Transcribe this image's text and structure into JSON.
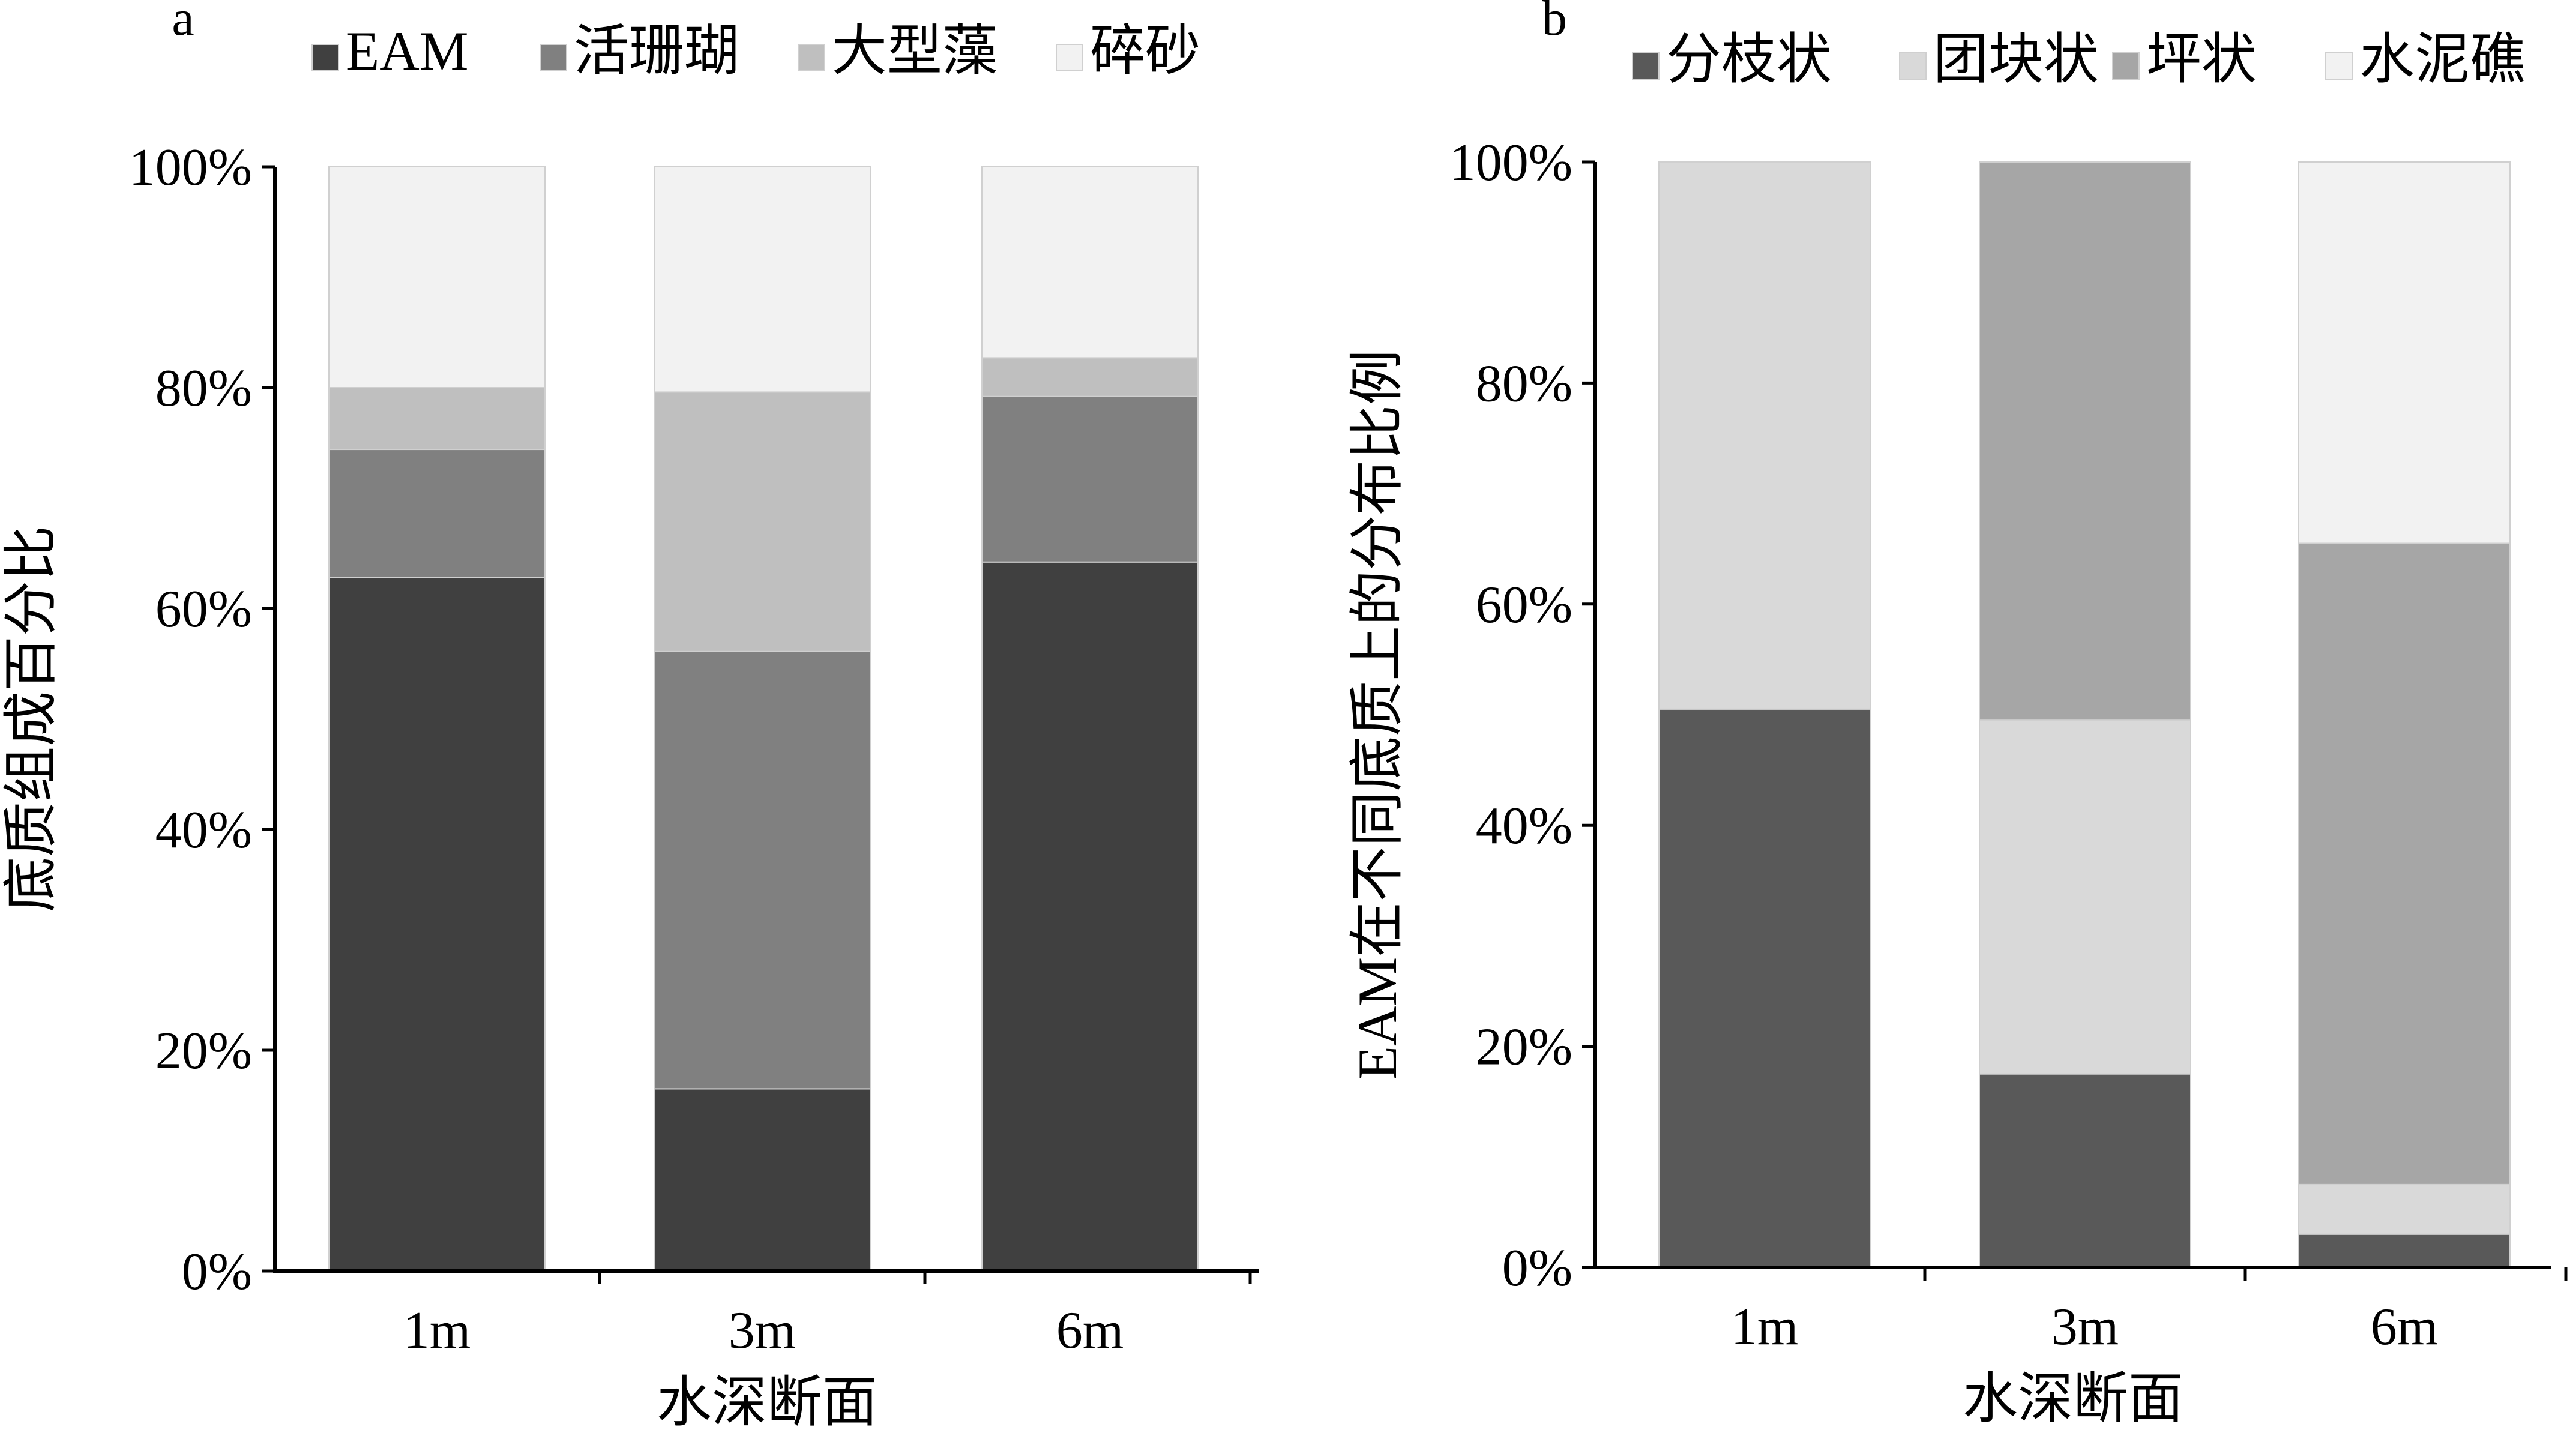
{
  "chart_data": [
    {
      "panel_label": "a",
      "type": "bar",
      "stacked": true,
      "percent": true,
      "categories": [
        "1m",
        "3m",
        "6m"
      ],
      "series": [
        {
          "name": "EAM",
          "color": "#404040",
          "values": [
            62.8,
            16.5,
            64.2
          ]
        },
        {
          "name": "活珊瑚",
          "color": "#808080",
          "values": [
            11.6,
            39.6,
            15.0
          ]
        },
        {
          "name": "大型藻",
          "color": "#bfbfbf",
          "values": [
            5.6,
            23.5,
            3.5
          ]
        },
        {
          "name": "碎砂",
          "color": "#f2f2f2",
          "values": [
            20.0,
            20.4,
            17.3
          ]
        }
      ],
      "xlabel": "水深断面",
      "ylabel": "底质组成百分比",
      "ylim": [
        0,
        100
      ],
      "yticks": [
        "0%",
        "20%",
        "40%",
        "60%",
        "80%",
        "100%"
      ],
      "legend": "top",
      "grid": false
    },
    {
      "panel_label": "b",
      "type": "bar",
      "stacked": true,
      "percent": true,
      "categories": [
        "1m",
        "3m",
        "6m"
      ],
      "series": [
        {
          "name": "分枝状",
          "color": "#595959",
          "values": [
            50.5,
            17.5,
            3.0
          ]
        },
        {
          "name": "团块状",
          "color": "#d9d9d9",
          "values": [
            49.5,
            32.0,
            4.5
          ]
        },
        {
          "name": "坪状",
          "color": "#a6a6a6",
          "values": [
            0.0,
            50.5,
            58.0
          ]
        },
        {
          "name": "水泥礁",
          "color": "#f2f2f2",
          "values": [
            0.0,
            0.0,
            34.5
          ]
        }
      ],
      "xlabel": "水深断面",
      "ylabel": "EAM在不同底质上的分布比例",
      "ylim": [
        0,
        100
      ],
      "yticks": [
        "0%",
        "20%",
        "40%",
        "60%",
        "80%",
        "100%"
      ],
      "legend": "top",
      "grid": false
    }
  ]
}
